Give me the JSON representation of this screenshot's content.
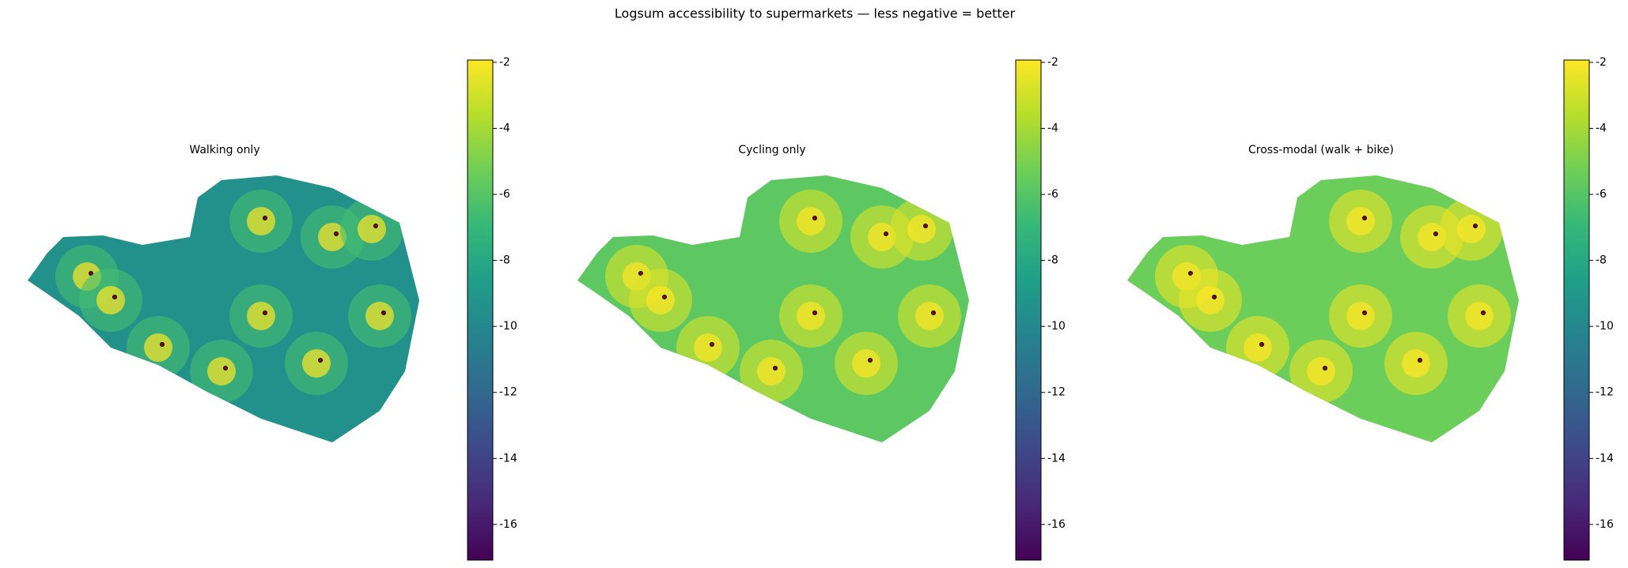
{
  "chart_data": [
    {
      "type": "hexmap",
      "title": "Walking only",
      "typical_value": -9.5,
      "ylim": [
        -17.08,
        -1.93
      ],
      "yticks": [
        -2,
        -4,
        -6,
        -8,
        -10,
        -12,
        -14,
        -16
      ]
    },
    {
      "type": "hexmap",
      "title": "Cycling only",
      "typical_value": -5.8,
      "ylim": [
        -17.08,
        -1.93
      ],
      "yticks": [
        -2,
        -4,
        -6,
        -8,
        -10,
        -12,
        -14,
        -16
      ]
    },
    {
      "type": "hexmap",
      "title": "Cross-modal (walk + bike)",
      "typical_value": -5.4,
      "ylim": [
        -17.08,
        -1.93
      ],
      "yticks": [
        -2,
        -4,
        -6,
        -8,
        -10,
        -12,
        -14,
        -16
      ]
    }
  ],
  "suptitle": "Logsum accessibility to supermarkets — less negative = better",
  "colormap": [
    "#440154",
    "#482878",
    "#3e4989",
    "#31688e",
    "#26828e",
    "#1f9e89",
    "#35b779",
    "#6ece58",
    "#b5de2b",
    "#fde725"
  ]
}
